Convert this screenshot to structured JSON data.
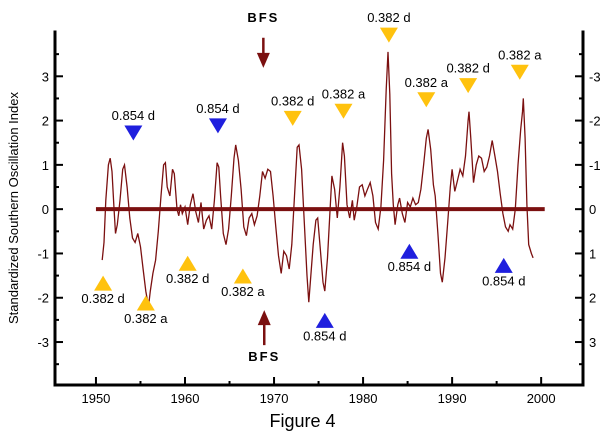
{
  "figure": {
    "caption": "Figure 4"
  },
  "axis": {
    "ylabel_left": "Standardized Southern Oscillation Index",
    "right_axis_note": "right axis labels are the inverted scale of the left axis"
  },
  "colors": {
    "series": "#7B1010",
    "zero_line": "#7B1010",
    "bfs_arrow": "#7B1010",
    "annotation_yellow": "#FFC20E",
    "annotation_blue": "#1F1FDE",
    "axis": "#000000",
    "text": "#000000",
    "background": "#FFFFFF"
  },
  "chart_data": {
    "type": "line",
    "title": "",
    "xlabel": "",
    "ylabel": "Standardized Southern Oscillation Index",
    "xlim": [
      1945.4,
      2004.7
    ],
    "ylim": [
      -3.97,
      4.0
    ],
    "x_ticks_major": [
      1950,
      1960,
      1970,
      1980,
      1990,
      2000
    ],
    "x_ticks_minor": [
      1955,
      1965,
      1975,
      1985,
      1995
    ],
    "y_ticks_major": [
      -3,
      -2,
      -1,
      0,
      1,
      2,
      3
    ],
    "y_ticks_minor": [
      -3.5,
      -2.5,
      -1.5,
      -0.5,
      0.5,
      1.5,
      2.5,
      3.5
    ],
    "left_tick_labels": [
      "-3",
      "-2",
      "-1",
      "0",
      "1",
      "2",
      "3"
    ],
    "right_tick_labels": [
      "3",
      "2",
      "1",
      "0",
      "-1",
      "-2",
      "-3"
    ],
    "grid": false,
    "legend": "none",
    "zero_line": {
      "value": 0,
      "x_start": 1950.0,
      "x_end": 2000.4
    },
    "series": [
      {
        "name": "Standardized SOI",
        "points": [
          [
            1950.7,
            -1.15
          ],
          [
            1950.9,
            -0.75
          ],
          [
            1951.1,
            0.2
          ],
          [
            1951.4,
            1.0
          ],
          [
            1951.6,
            1.15
          ],
          [
            1951.8,
            0.85
          ],
          [
            1952.0,
            0.1
          ],
          [
            1952.2,
            -0.55
          ],
          [
            1952.4,
            -0.35
          ],
          [
            1952.7,
            0.2
          ],
          [
            1953.0,
            0.9
          ],
          [
            1953.2,
            1.0
          ],
          [
            1953.5,
            0.5
          ],
          [
            1953.8,
            -0.2
          ],
          [
            1954.1,
            -0.65
          ],
          [
            1954.4,
            -0.75
          ],
          [
            1954.7,
            -0.55
          ],
          [
            1955.0,
            -0.85
          ],
          [
            1955.3,
            -1.35
          ],
          [
            1955.6,
            -1.85
          ],
          [
            1955.9,
            -2.2
          ],
          [
            1956.1,
            -1.85
          ],
          [
            1956.4,
            -1.45
          ],
          [
            1956.7,
            -1.15
          ],
          [
            1957.0,
            -0.5
          ],
          [
            1957.3,
            0.3
          ],
          [
            1957.6,
            1.0
          ],
          [
            1957.8,
            1.05
          ],
          [
            1958.0,
            0.5
          ],
          [
            1958.3,
            0.3
          ],
          [
            1958.6,
            0.9
          ],
          [
            1958.8,
            0.8
          ],
          [
            1959.1,
            0.0
          ],
          [
            1959.3,
            -0.15
          ],
          [
            1959.5,
            0.1
          ],
          [
            1959.7,
            -0.1
          ],
          [
            1960.0,
            0.05
          ],
          [
            1960.3,
            -0.35
          ],
          [
            1960.6,
            0.1
          ],
          [
            1960.9,
            0.35
          ],
          [
            1961.2,
            -0.05
          ],
          [
            1961.5,
            -0.3
          ],
          [
            1961.8,
            0.15
          ],
          [
            1962.1,
            -0.45
          ],
          [
            1962.4,
            -0.25
          ],
          [
            1962.7,
            -0.15
          ],
          [
            1963.0,
            -0.45
          ],
          [
            1963.3,
            0.2
          ],
          [
            1963.6,
            1.05
          ],
          [
            1963.8,
            0.95
          ],
          [
            1964.0,
            0.3
          ],
          [
            1964.3,
            -0.55
          ],
          [
            1964.6,
            -0.8
          ],
          [
            1964.9,
            -0.45
          ],
          [
            1965.2,
            0.3
          ],
          [
            1965.5,
            1.15
          ],
          [
            1965.7,
            1.45
          ],
          [
            1966.0,
            1.1
          ],
          [
            1966.3,
            0.45
          ],
          [
            1966.6,
            -0.4
          ],
          [
            1966.9,
            -0.6
          ],
          [
            1967.2,
            -0.2
          ],
          [
            1967.5,
            -0.1
          ],
          [
            1967.8,
            -0.35
          ],
          [
            1968.1,
            -0.15
          ],
          [
            1968.4,
            0.3
          ],
          [
            1968.7,
            0.85
          ],
          [
            1969.0,
            0.7
          ],
          [
            1969.3,
            0.9
          ],
          [
            1969.6,
            0.85
          ],
          [
            1969.9,
            0.3
          ],
          [
            1970.2,
            -0.4
          ],
          [
            1970.5,
            -1.05
          ],
          [
            1970.8,
            -1.45
          ],
          [
            1971.1,
            -0.95
          ],
          [
            1971.4,
            -1.05
          ],
          [
            1971.7,
            -1.35
          ],
          [
            1972.0,
            -0.8
          ],
          [
            1972.3,
            0.3
          ],
          [
            1972.6,
            1.4
          ],
          [
            1972.8,
            1.45
          ],
          [
            1973.1,
            0.9
          ],
          [
            1973.4,
            -0.3
          ],
          [
            1973.7,
            -1.5
          ],
          [
            1973.9,
            -2.1
          ],
          [
            1974.1,
            -1.6
          ],
          [
            1974.4,
            -0.8
          ],
          [
            1974.7,
            -0.25
          ],
          [
            1974.9,
            -0.2
          ],
          [
            1975.2,
            -0.9
          ],
          [
            1975.5,
            -1.65
          ],
          [
            1975.7,
            -1.85
          ],
          [
            1976.0,
            -1.1
          ],
          [
            1976.3,
            0.0
          ],
          [
            1976.5,
            0.75
          ],
          [
            1976.8,
            0.45
          ],
          [
            1977.1,
            -0.2
          ],
          [
            1977.4,
            0.5
          ],
          [
            1977.7,
            1.5
          ],
          [
            1977.9,
            1.2
          ],
          [
            1978.2,
            0.1
          ],
          [
            1978.5,
            -0.2
          ],
          [
            1978.8,
            0.2
          ],
          [
            1979.0,
            -0.25
          ],
          [
            1979.3,
            0.05
          ],
          [
            1979.6,
            0.5
          ],
          [
            1979.9,
            0.55
          ],
          [
            1980.2,
            0.3
          ],
          [
            1980.5,
            0.45
          ],
          [
            1980.8,
            0.6
          ],
          [
            1981.1,
            0.3
          ],
          [
            1981.4,
            -0.3
          ],
          [
            1981.7,
            -0.45
          ],
          [
            1982.0,
            0.05
          ],
          [
            1982.3,
            1.1
          ],
          [
            1982.6,
            2.7
          ],
          [
            1982.8,
            3.55
          ],
          [
            1983.0,
            2.6
          ],
          [
            1983.2,
            0.8
          ],
          [
            1983.4,
            0.1
          ],
          [
            1983.6,
            -0.35
          ],
          [
            1983.9,
            0.1
          ],
          [
            1984.1,
            0.25
          ],
          [
            1984.4,
            -0.1
          ],
          [
            1984.7,
            -0.3
          ],
          [
            1985.0,
            0.15
          ],
          [
            1985.3,
            0.05
          ],
          [
            1985.6,
            0.25
          ],
          [
            1985.9,
            0.1
          ],
          [
            1986.2,
            0.15
          ],
          [
            1986.5,
            0.45
          ],
          [
            1986.8,
            1.0
          ],
          [
            1987.1,
            1.6
          ],
          [
            1987.3,
            1.8
          ],
          [
            1987.6,
            1.35
          ],
          [
            1987.9,
            0.55
          ],
          [
            1988.1,
            0.3
          ],
          [
            1988.4,
            -0.55
          ],
          [
            1988.7,
            -1.45
          ],
          [
            1988.9,
            -1.65
          ],
          [
            1989.2,
            -1.1
          ],
          [
            1989.5,
            -0.3
          ],
          [
            1989.8,
            0.5
          ],
          [
            1990.0,
            0.9
          ],
          [
            1990.3,
            0.4
          ],
          [
            1990.6,
            0.65
          ],
          [
            1990.9,
            0.9
          ],
          [
            1991.2,
            0.75
          ],
          [
            1991.5,
            1.2
          ],
          [
            1991.8,
            2.0
          ],
          [
            1991.9,
            2.2
          ],
          [
            1992.1,
            1.6
          ],
          [
            1992.4,
            0.6
          ],
          [
            1992.7,
            1.0
          ],
          [
            1993.0,
            1.2
          ],
          [
            1993.3,
            1.15
          ],
          [
            1993.6,
            0.85
          ],
          [
            1993.9,
            0.95
          ],
          [
            1994.2,
            1.2
          ],
          [
            1994.5,
            1.55
          ],
          [
            1994.8,
            1.2
          ],
          [
            1995.1,
            0.85
          ],
          [
            1995.4,
            0.35
          ],
          [
            1995.7,
            -0.1
          ],
          [
            1996.0,
            -0.4
          ],
          [
            1996.3,
            -0.5
          ],
          [
            1996.5,
            -0.35
          ],
          [
            1996.8,
            -0.45
          ],
          [
            1997.1,
            0.0
          ],
          [
            1997.4,
            1.0
          ],
          [
            1997.7,
            1.8
          ],
          [
            1997.9,
            2.2
          ],
          [
            1998.0,
            2.5
          ],
          [
            1998.2,
            1.6
          ],
          [
            1998.4,
            0.1
          ],
          [
            1998.6,
            -0.8
          ],
          [
            1998.9,
            -1.0
          ],
          [
            1999.1,
            -1.1
          ]
        ]
      }
    ],
    "annotations": [
      {
        "x": 1954.2,
        "y": 1.72,
        "shape": "triangle-down",
        "color": "blue",
        "label": "0.854 d",
        "label_pos": "above"
      },
      {
        "x": 1963.7,
        "y": 1.88,
        "shape": "triangle-down",
        "color": "blue",
        "label": "0.854 d",
        "label_pos": "above"
      },
      {
        "x": 1972.1,
        "y": 2.05,
        "shape": "triangle-down",
        "color": "yellow",
        "label": "0.382 d",
        "label_pos": "above"
      },
      {
        "x": 1977.8,
        "y": 2.21,
        "shape": "triangle-down",
        "color": "yellow",
        "label": "0.382 a",
        "label_pos": "above"
      },
      {
        "x": 1982.9,
        "y": 3.93,
        "shape": "triangle-down",
        "color": "yellow",
        "label": "0.382 d",
        "label_pos": "above"
      },
      {
        "x": 1987.1,
        "y": 2.47,
        "shape": "triangle-down",
        "color": "yellow",
        "label": "0.382 a",
        "label_pos": "above"
      },
      {
        "x": 1991.8,
        "y": 2.79,
        "shape": "triangle-down",
        "color": "yellow",
        "label": "0.382 d",
        "label_pos": "above"
      },
      {
        "x": 1997.6,
        "y": 3.09,
        "shape": "triangle-down",
        "color": "yellow",
        "label": "0.382 a",
        "label_pos": "above"
      },
      {
        "x": 1950.8,
        "y": -1.67,
        "shape": "triangle-up",
        "color": "yellow",
        "label": "0.382 d",
        "label_pos": "below"
      },
      {
        "x": 1955.6,
        "y": -2.12,
        "shape": "triangle-up",
        "color": "yellow",
        "label": "0.382 a",
        "label_pos": "below"
      },
      {
        "x": 1960.3,
        "y": -1.22,
        "shape": "triangle-up",
        "color": "yellow",
        "label": "0.382 d",
        "label_pos": "below"
      },
      {
        "x": 1966.5,
        "y": -1.51,
        "shape": "triangle-up",
        "color": "yellow",
        "label": "0.382 a",
        "label_pos": "below"
      },
      {
        "x": 1975.7,
        "y": -2.51,
        "shape": "triangle-up",
        "color": "blue",
        "label": "0.854 d",
        "label_pos": "below"
      },
      {
        "x": 1985.2,
        "y": -0.95,
        "shape": "triangle-up",
        "color": "blue",
        "label": "0.854 d",
        "label_pos": "below"
      },
      {
        "x": 1995.8,
        "y": -1.27,
        "shape": "triangle-up",
        "color": "blue",
        "label": "0.854 d",
        "label_pos": "below"
      }
    ],
    "arrows": [
      {
        "x": 1968.8,
        "tail": 3.87,
        "tip": 3.19,
        "dir": "down",
        "label": "BFS",
        "label_pos": "above"
      },
      {
        "x": 1968.9,
        "tail": -3.07,
        "tip": -2.28,
        "dir": "up",
        "label": "BFS",
        "label_pos": "below"
      }
    ]
  }
}
